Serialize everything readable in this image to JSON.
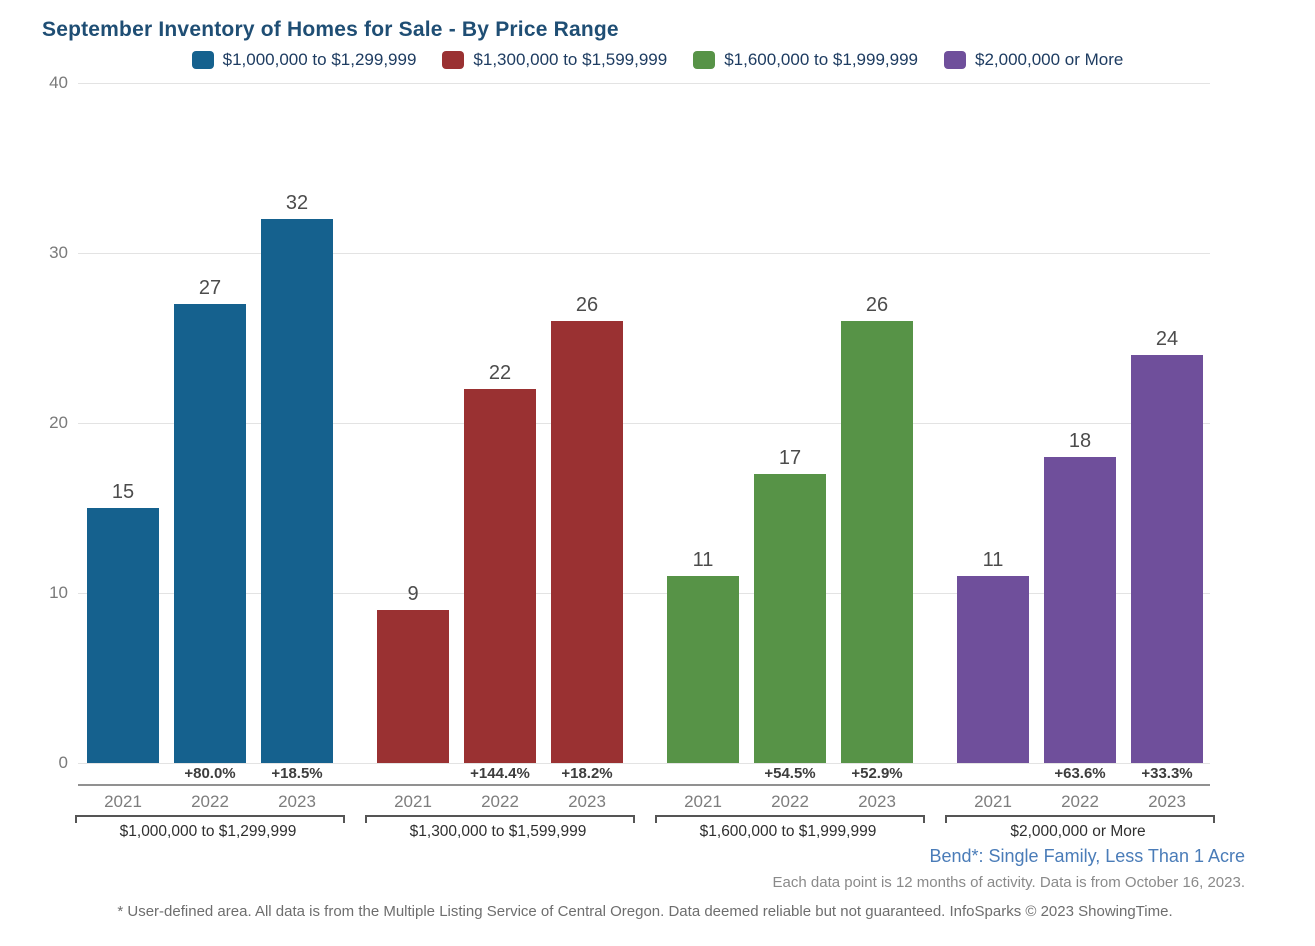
{
  "title": "September Inventory of Homes for Sale - By Price Range",
  "chart_data": {
    "type": "bar",
    "title": "September Inventory of Homes for Sale - By Price Range",
    "categories": [
      "2021",
      "2022",
      "2023"
    ],
    "ylim": [
      0,
      40
    ],
    "yticks": [
      0,
      10,
      20,
      30,
      40
    ],
    "grid": true,
    "legend_position": "top-center",
    "groups": [
      {
        "label": "$1,000,000 to $1,299,999",
        "color": "#15618e",
        "values": [
          15,
          27,
          32
        ],
        "pct_change": [
          "",
          "+80.0%",
          "+18.5%"
        ]
      },
      {
        "label": "$1,300,000 to $1,599,999",
        "color": "#9a3132",
        "values": [
          9,
          22,
          26
        ],
        "pct_change": [
          "",
          "+144.4%",
          "+18.2%"
        ]
      },
      {
        "label": "$1,600,000 to $1,999,999",
        "color": "#579347",
        "values": [
          11,
          17,
          26
        ],
        "pct_change": [
          "",
          "+54.5%",
          "+52.9%"
        ]
      },
      {
        "label": "$2,000,000 or More",
        "color": "#6f4f9b",
        "values": [
          11,
          18,
          24
        ],
        "pct_change": [
          "",
          "+63.6%",
          "+33.3%"
        ]
      }
    ]
  },
  "footer": {
    "area_line": "Bend*: Single Family, Less Than 1 Acre",
    "data_line": "Each data point is 12 months of activity. Data is from October 16, 2023.",
    "disclaimer": "* User-defined area. All data is from the Multiple Listing Service of Central Oregon. Data deemed reliable but not guaranteed. InfoSparks © 2023 ShowingTime."
  }
}
